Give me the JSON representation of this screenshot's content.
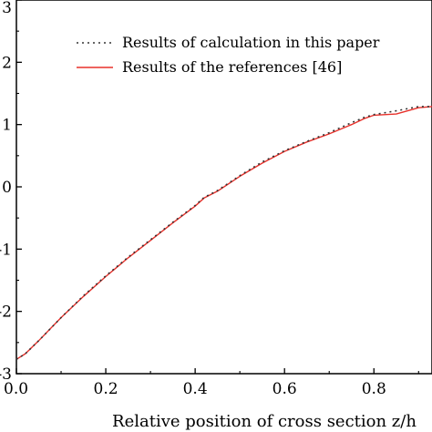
{
  "chart_data": {
    "type": "line",
    "title": "",
    "xlabel": "Relative position of cross section z/h",
    "ylabel": "",
    "xlim": [
      0.0,
      0.93
    ],
    "ylim": [
      -3,
      3
    ],
    "xticks": [
      "0.0",
      "0.2",
      "0.4",
      "0.6",
      "0.8"
    ],
    "yticks": [
      "3",
      "2",
      "1",
      "0",
      "-1",
      "-2",
      "-3"
    ],
    "grid": false,
    "legend": {
      "placement": "top-left"
    },
    "colors": {
      "calculation": "#333333",
      "reference": "#e8302a"
    },
    "series": [
      {
        "name": "Results of calculation in this paper",
        "style": "dotted",
        "x": [
          0.0,
          0.02,
          0.05,
          0.1,
          0.15,
          0.2,
          0.25,
          0.3,
          0.35,
          0.4,
          0.42,
          0.45,
          0.5,
          0.55,
          0.6,
          0.65,
          0.7,
          0.75,
          0.78,
          0.8,
          0.85,
          0.9,
          0.93
        ],
        "y": [
          -2.77,
          -2.68,
          -2.47,
          -2.1,
          -1.75,
          -1.43,
          -1.13,
          -0.85,
          -0.57,
          -0.3,
          -0.17,
          -0.06,
          0.18,
          0.4,
          0.58,
          0.73,
          0.87,
          1.03,
          1.12,
          1.16,
          1.22,
          1.29,
          1.29
        ]
      },
      {
        "name": "Results of the references [46]",
        "style": "solid",
        "x": [
          0.0,
          0.02,
          0.05,
          0.1,
          0.15,
          0.2,
          0.25,
          0.3,
          0.35,
          0.4,
          0.42,
          0.45,
          0.5,
          0.55,
          0.6,
          0.65,
          0.7,
          0.75,
          0.78,
          0.8,
          0.85,
          0.9,
          0.93
        ],
        "y": [
          -2.77,
          -2.68,
          -2.47,
          -2.1,
          -1.76,
          -1.44,
          -1.14,
          -0.86,
          -0.58,
          -0.31,
          -0.18,
          -0.07,
          0.17,
          0.38,
          0.57,
          0.72,
          0.85,
          1.0,
          1.1,
          1.15,
          1.17,
          1.27,
          1.29
        ]
      }
    ]
  }
}
